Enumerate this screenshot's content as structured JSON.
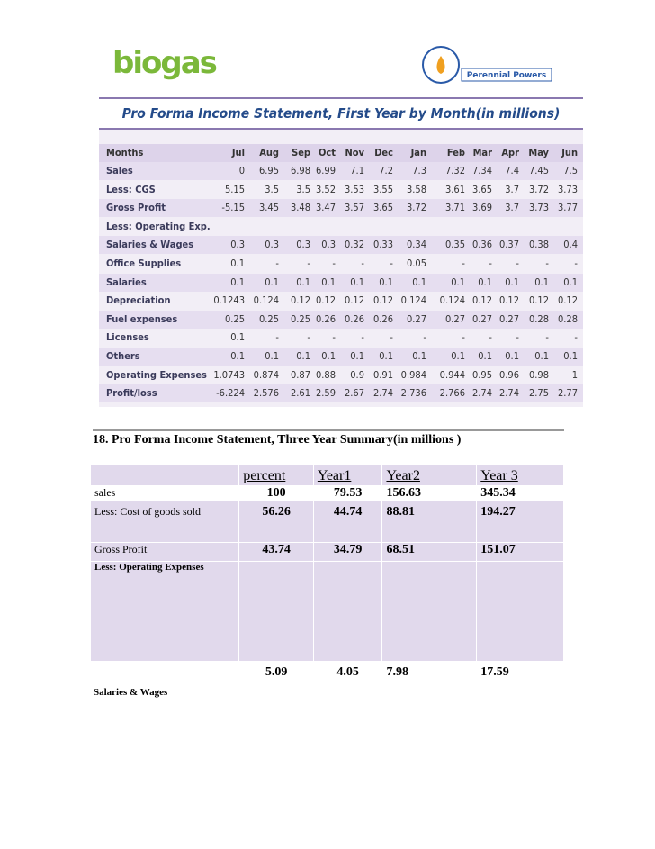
{
  "logos": {
    "left": "biogas",
    "right": "Perennial Powers"
  },
  "monthly": {
    "title": "Pro Forma Income Statement, First Year by Month(in millions)",
    "header": [
      "Months",
      "Jul",
      "Aug",
      "Sep",
      "Oct",
      "Nov",
      "Dec",
      "Jan",
      "Feb",
      "Mar",
      "Apr",
      "May",
      "Jun"
    ],
    "rows": [
      [
        "Sales",
        "0",
        "6.95",
        "6.98",
        "6.99",
        "7.1",
        "7.2",
        "7.3",
        "7.32",
        "7.34",
        "7.4",
        "7.45",
        "7.5"
      ],
      [
        "Less: CGS",
        "5.15",
        "3.5",
        "3.5",
        "3.52",
        "3.53",
        "3.55",
        "3.58",
        "3.61",
        "3.65",
        "3.7",
        "3.72",
        "3.73"
      ],
      [
        "Gross Profit",
        "-5.15",
        "3.45",
        "3.48",
        "3.47",
        "3.57",
        "3.65",
        "3.72",
        "3.71",
        "3.69",
        "3.7",
        "3.73",
        "3.77"
      ],
      [
        "Less: Operating Exp."
      ],
      [
        "Salaries & Wages",
        "0.3",
        "0.3",
        "0.3",
        "0.3",
        "0.32",
        "0.33",
        "0.34",
        "0.35",
        "0.36",
        "0.37",
        "0.38",
        "0.4"
      ],
      [
        "Office Supplies",
        "0.1",
        "-",
        "-",
        "-",
        "-",
        "-",
        "0.05",
        "-",
        "-",
        "-",
        "-",
        "-"
      ],
      [
        "Salaries",
        "0.1",
        "0.1",
        "0.1",
        "0.1",
        "0.1",
        "0.1",
        "0.1",
        "0.1",
        "0.1",
        "0.1",
        "0.1",
        "0.1"
      ],
      [
        "Depreciation",
        "0.1243",
        "0.124",
        "0.12",
        "0.12",
        "0.12",
        "0.12",
        "0.124",
        "0.124",
        "0.12",
        "0.12",
        "0.12",
        "0.12"
      ],
      [
        "Fuel expenses",
        "0.25",
        "0.25",
        "0.25",
        "0.26",
        "0.26",
        "0.26",
        "0.27",
        "0.27",
        "0.27",
        "0.27",
        "0.28",
        "0.28"
      ],
      [
        "Licenses",
        "0.1",
        "-",
        "-",
        "-",
        "-",
        "-",
        "-",
        "-",
        "-",
        "-",
        "-",
        "-"
      ],
      [
        "Others",
        "0.1",
        "0.1",
        "0.1",
        "0.1",
        "0.1",
        "0.1",
        "0.1",
        "0.1",
        "0.1",
        "0.1",
        "0.1",
        "0.1"
      ],
      [
        "Operating Expenses",
        "1.0743",
        "0.874",
        "0.87",
        "0.88",
        "0.9",
        "0.91",
        "0.984",
        "0.944",
        "0.95",
        "0.96",
        "0.98",
        "1"
      ],
      [
        "Profit/loss",
        "-6.224",
        "2.576",
        "2.61",
        "2.59",
        "2.67",
        "2.74",
        "2.736",
        "2.766",
        "2.74",
        "2.74",
        "2.75",
        "2.77"
      ]
    ]
  },
  "summary": {
    "title": "18. Pro Forma Income Statement, Three Year Summary(in millions )",
    "header": [
      "percent",
      "Year1",
      "Year2",
      "Year 3"
    ],
    "rows": [
      [
        "sales",
        "100",
        "79.53",
        "156.63",
        "345.34"
      ],
      [
        "Less: Cost of goods sold",
        "56.26",
        "44.74",
        "88.81",
        "194.27"
      ],
      [
        "Gross Profit",
        "43.74",
        "34.79",
        "68.51",
        "151.07"
      ],
      [
        "Less: Operating Expenses"
      ]
    ],
    "unlabeled_row": [
      "5.09",
      "4.05",
      "7.98",
      "17.59"
    ],
    "footer": "Salaries & Wages"
  }
}
